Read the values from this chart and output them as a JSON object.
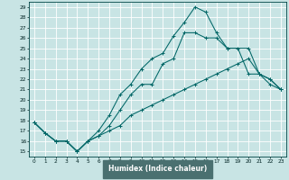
{
  "xlabel": "Humidex (Indice chaleur)",
  "bg_color": "#c8e4e4",
  "axis_bg_color": "#c8e4e4",
  "grid_color": "#ffffff",
  "line_color": "#006666",
  "xlabel_bg": "#4a7070",
  "xlim": [
    -0.5,
    23.5
  ],
  "ylim": [
    14.5,
    29.5
  ],
  "line1_x": [
    0,
    1,
    2,
    3,
    4,
    5,
    6,
    7,
    8,
    9,
    10,
    11,
    12,
    13,
    14,
    15,
    16,
    17,
    18,
    19,
    20,
    21,
    22,
    23
  ],
  "line1_y": [
    17.8,
    16.8,
    16.0,
    16.0,
    15.0,
    16.0,
    17.0,
    18.5,
    20.5,
    21.5,
    23.0,
    24.0,
    24.5,
    26.2,
    27.5,
    29.0,
    28.5,
    26.5,
    25.0,
    25.0,
    22.5,
    22.5,
    21.5,
    21.0
  ],
  "line2_x": [
    0,
    1,
    2,
    3,
    4,
    5,
    6,
    7,
    8,
    9,
    10,
    11,
    12,
    13,
    14,
    15,
    16,
    17,
    18,
    20,
    21,
    22,
    23
  ],
  "line2_y": [
    17.8,
    16.8,
    16.0,
    16.0,
    15.0,
    16.0,
    16.5,
    17.5,
    19.0,
    20.5,
    21.5,
    21.5,
    23.5,
    24.0,
    26.5,
    26.5,
    26.0,
    26.0,
    25.0,
    25.0,
    22.5,
    22.0,
    21.0
  ],
  "line3_x": [
    0,
    1,
    2,
    3,
    4,
    5,
    6,
    7,
    8,
    9,
    10,
    11,
    12,
    13,
    14,
    15,
    16,
    17,
    18,
    19,
    20,
    21,
    22,
    23
  ],
  "line3_y": [
    17.8,
    16.8,
    16.0,
    16.0,
    15.0,
    16.0,
    16.5,
    17.0,
    17.5,
    18.5,
    19.0,
    19.5,
    20.0,
    20.5,
    21.0,
    21.5,
    22.0,
    22.5,
    23.0,
    23.5,
    24.0,
    22.5,
    22.0,
    21.0
  ]
}
